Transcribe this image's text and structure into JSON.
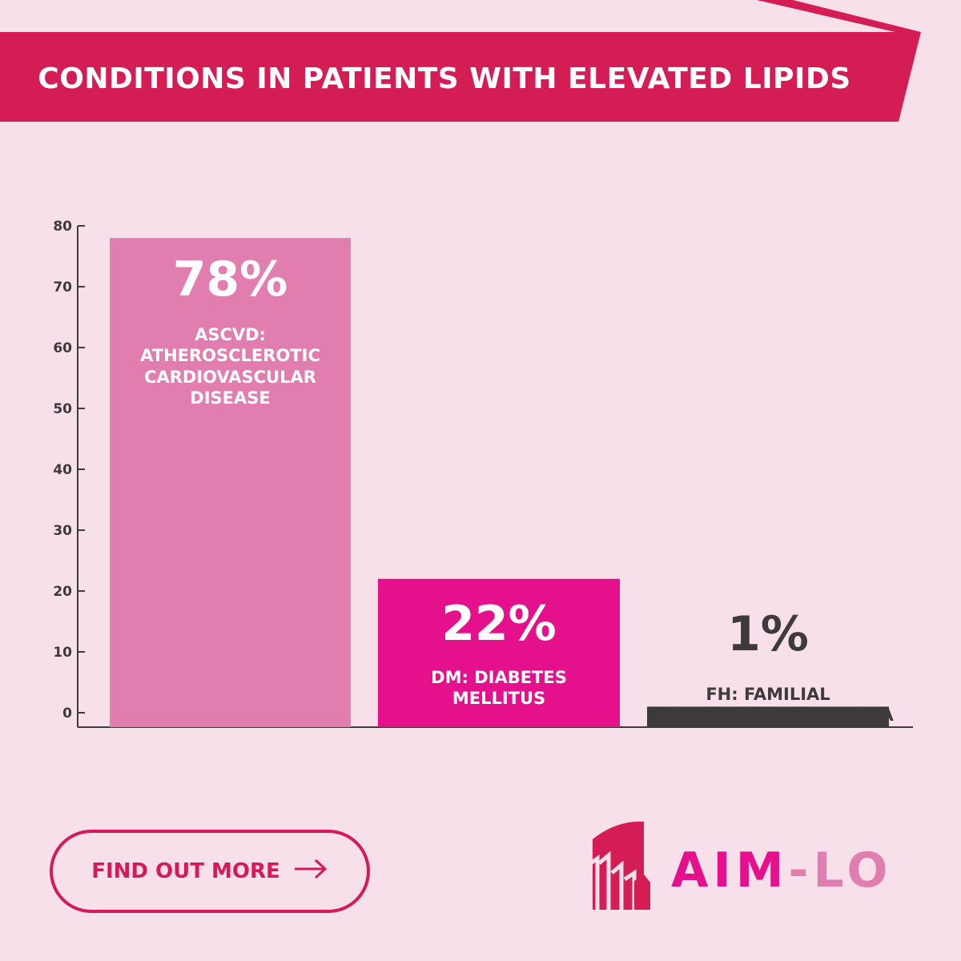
{
  "header": {
    "title": "CONDITIONS IN PATIENTS WITH ELEVATED LIPIDS"
  },
  "chart_data": {
    "type": "bar",
    "categories": [
      "ASCVD: ATHEROSCLEROTIC CARDIOVASCULAR DISEASE",
      "DM: DIABETES MELLITUS",
      "FH: FAMILIAL HYPERCHOLESTEROLEMIA"
    ],
    "values": [
      78,
      22,
      1
    ],
    "value_labels": [
      "78%",
      "22%",
      "1%"
    ],
    "category_lines": [
      [
        "ASCVD:",
        "ATHEROSCLEROTIC",
        "CARDIOVASCULAR",
        "DISEASE"
      ],
      [
        "DM: DIABETES",
        "MELLITUS"
      ],
      [
        "FH: FAMILIAL",
        "HYPERCHOLESTEROLEMIA"
      ]
    ],
    "bar_colors": [
      "#e27db0",
      "#e5108c",
      "#3d3a3b"
    ],
    "label_colors": [
      "#ffffff",
      "#ffffff",
      "#3d3a3b"
    ],
    "yticks": [
      0,
      10,
      20,
      30,
      40,
      50,
      60,
      70,
      80
    ],
    "ylim": [
      0,
      80
    ],
    "grid": false
  },
  "cta": {
    "label": "FIND OUT MORE",
    "arrow_icon": "arrow-right-icon"
  },
  "brand": {
    "name_part1": "AIM",
    "name_part2": "-LO",
    "color1": "#e5108c",
    "color2": "#e27db0"
  },
  "colors": {
    "background": "#f8e0ea",
    "banner": "#d41c55",
    "axis": "#3d3a3b"
  }
}
